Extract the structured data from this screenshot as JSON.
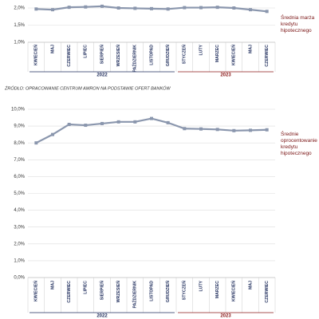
{
  "chart_data": [
    {
      "type": "line",
      "categories": [
        "KWIECIEŃ",
        "MAJ",
        "CZERWIEC",
        "LIPIEC",
        "SIERPIEŃ",
        "WRZESIEŃ",
        "PAŹDZIERNIK",
        "LISTOPAD",
        "GRUDZIEŃ",
        "STYCZEŃ",
        "LUTY",
        "MARZEC",
        "KWIECIEŃ",
        "MAJ",
        "CZERWIEC"
      ],
      "series": [
        {
          "name": "Średnia marża kredytu hipotecznego",
          "color": "#8a96ad",
          "values": [
            1.97,
            1.95,
            2.02,
            2.03,
            2.05,
            2.0,
            1.99,
            1.98,
            1.97,
            2.01,
            2.01,
            2.02,
            2.0,
            1.95,
            1.9
          ]
        }
      ],
      "ylim": [
        1.0,
        2.2
      ],
      "yticks": [
        {
          "value": 1.0,
          "label": "1,0%"
        },
        {
          "value": 1.5,
          "label": "1,5%"
        },
        {
          "value": 2.0,
          "label": "2,0%"
        }
      ],
      "groups": [
        {
          "label": "2022",
          "count": 9,
          "color": "#1f2d5c"
        },
        {
          "label": "2023",
          "count": 6,
          "color": "#8b1a1a"
        }
      ],
      "grid": true
    },
    {
      "type": "line",
      "categories": [
        "KWIECIEŃ",
        "MAJ",
        "CZERWIEC",
        "LIPIEC",
        "SIERPIEŃ",
        "WRZESIEŃ",
        "PAŹDZIERNIK",
        "LISTOPAD",
        "GRUDZIEŃ",
        "STYCZEŃ",
        "LUTY",
        "MARZEC",
        "KWIECIEŃ",
        "MAJ",
        "CZERWIEC"
      ],
      "series": [
        {
          "name": "Średnie oprocentowanie kredytu hipotecznego",
          "color": "#8a96ad",
          "values": [
            8.0,
            8.5,
            9.1,
            9.05,
            9.15,
            9.25,
            9.25,
            9.45,
            9.2,
            8.85,
            8.83,
            8.8,
            8.73,
            8.75,
            8.78
          ]
        }
      ],
      "ylim": [
        0,
        10
      ],
      "yticks": [
        {
          "value": 0,
          "label": "0,0%"
        },
        {
          "value": 1,
          "label": "1,0%"
        },
        {
          "value": 2,
          "label": "2,0%"
        },
        {
          "value": 3,
          "label": "3,0%"
        },
        {
          "value": 4,
          "label": "4,0%"
        },
        {
          "value": 5,
          "label": "5,0%"
        },
        {
          "value": 6,
          "label": "6,0%"
        },
        {
          "value": 7,
          "label": "7,0%"
        },
        {
          "value": 8,
          "label": "8,0%"
        },
        {
          "value": 9,
          "label": "9,0%"
        },
        {
          "value": 10,
          "label": "10,0%"
        }
      ],
      "groups": [
        {
          "label": "2022",
          "count": 9,
          "color": "#1f2d5c"
        },
        {
          "label": "2023",
          "count": 6,
          "color": "#8b1a1a"
        }
      ],
      "grid": true
    }
  ],
  "source": "ŹRÓDŁO: OPRACOWANIE CENTRUM AMRON NA PODSTAWIE OFERT BANKÓW"
}
